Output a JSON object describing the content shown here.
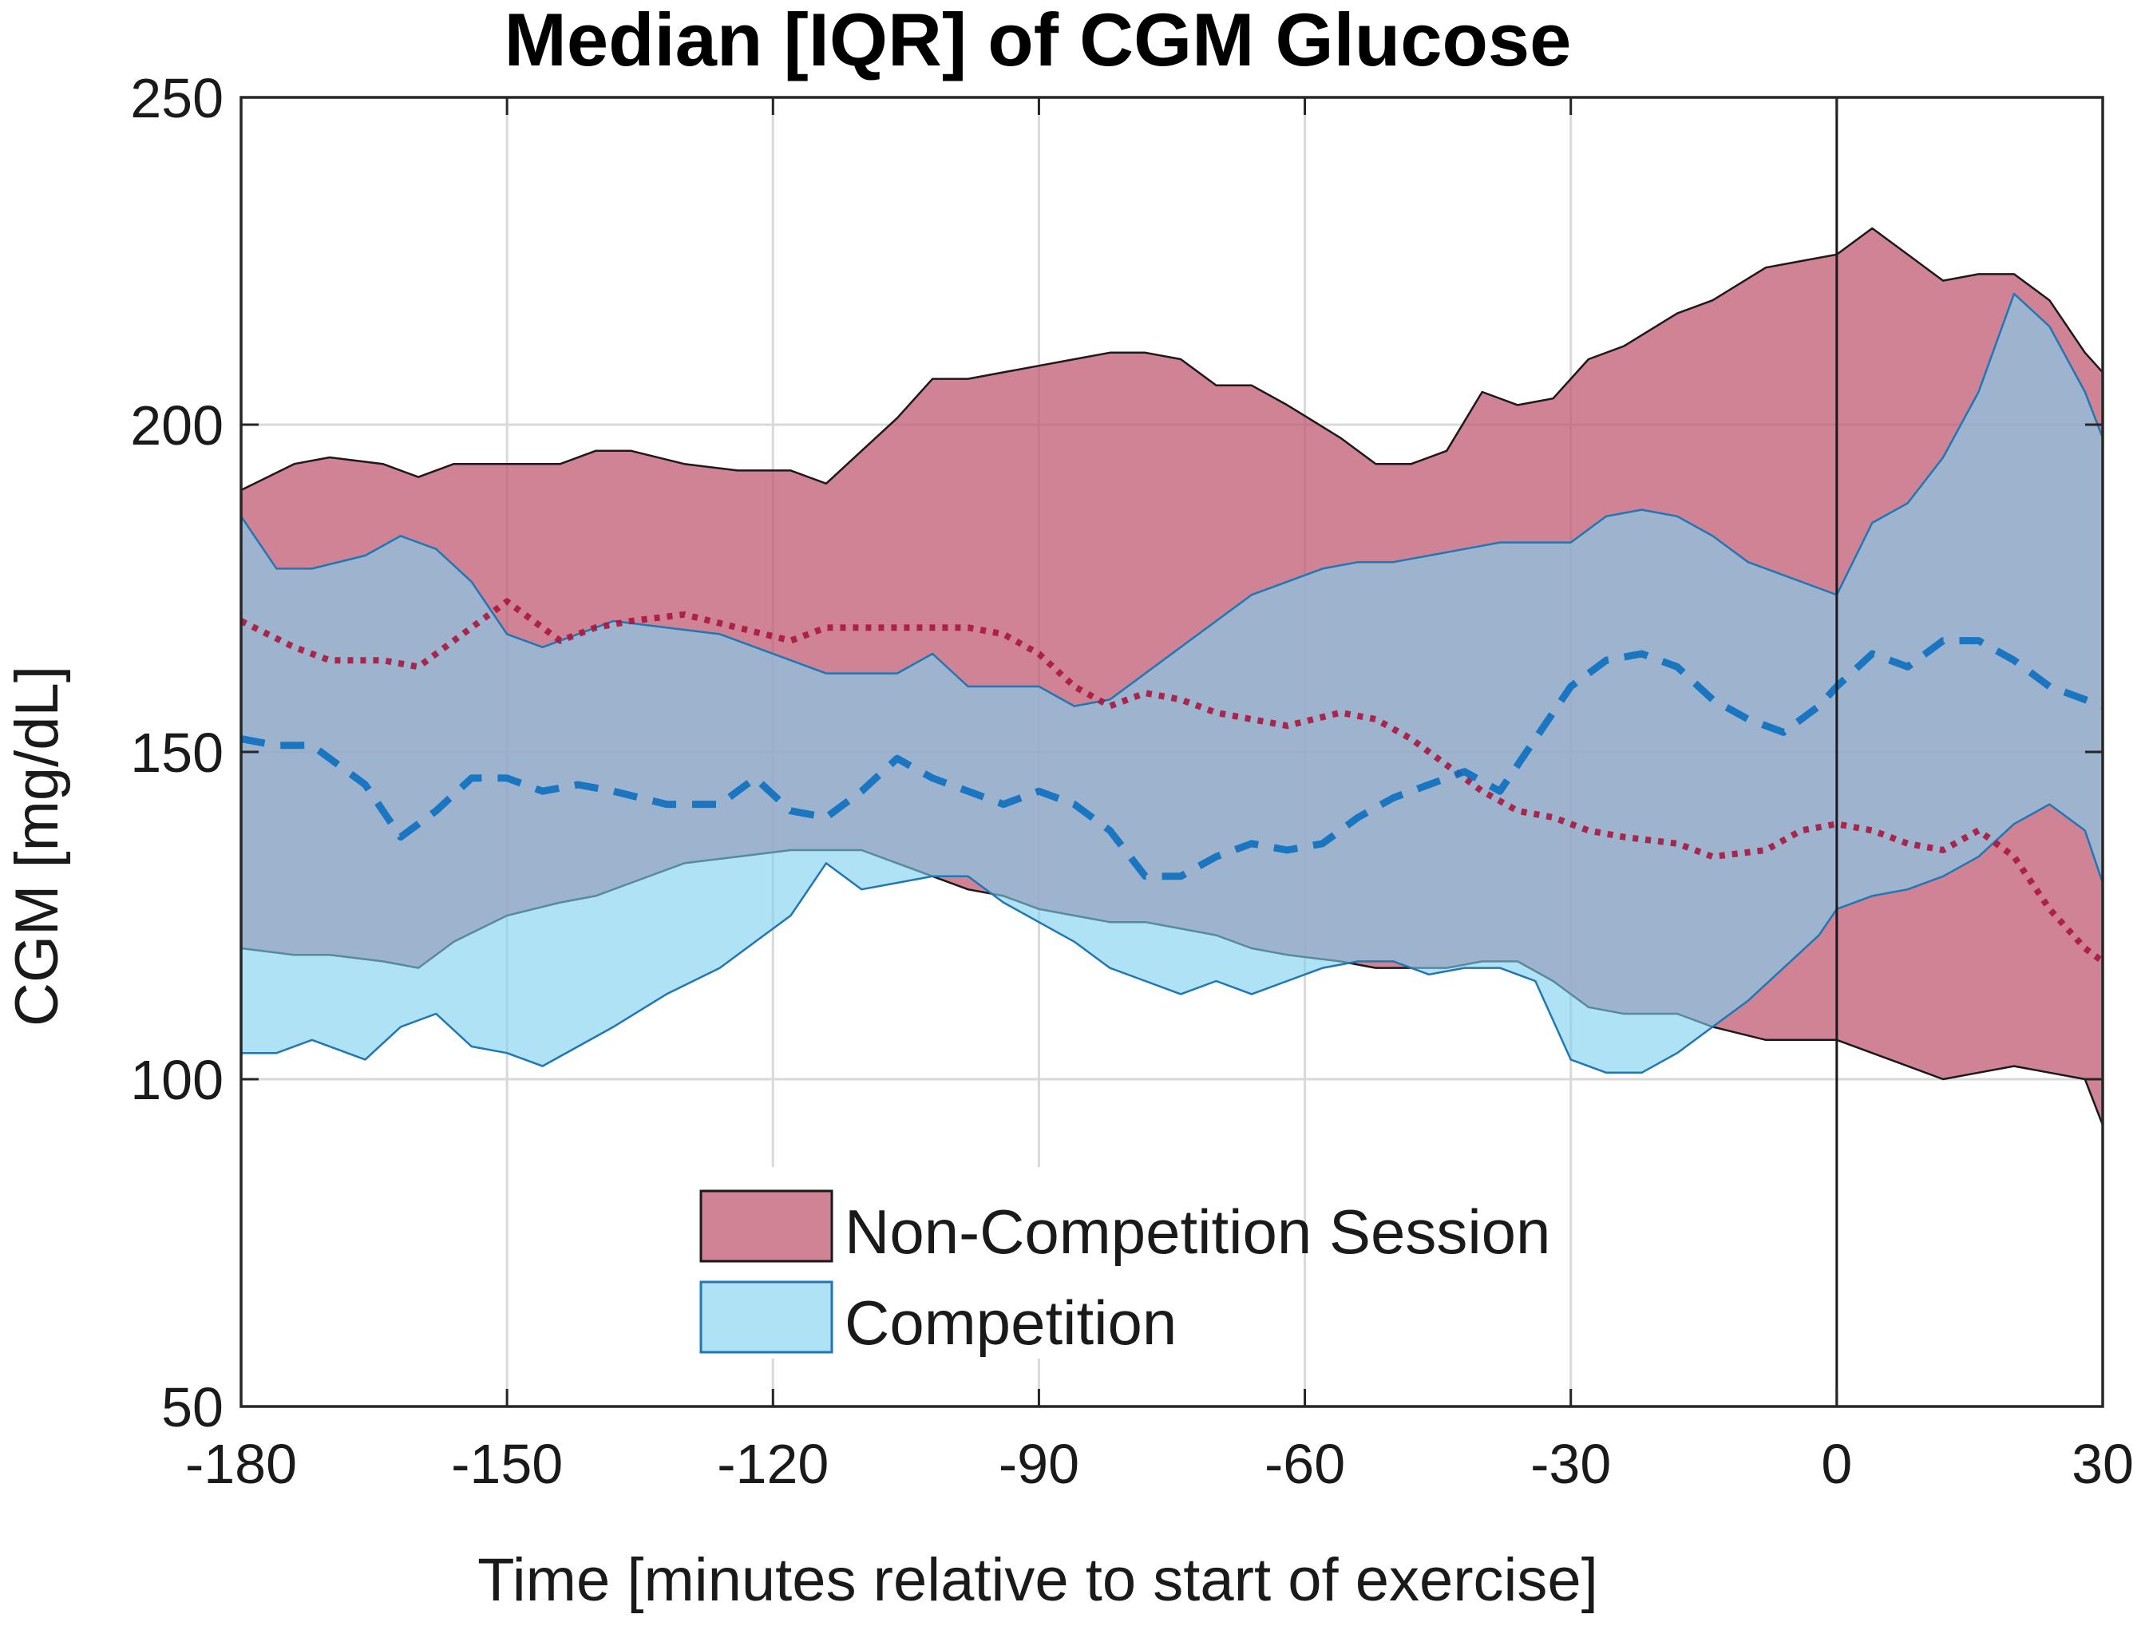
{
  "chart_data": {
    "type": "area",
    "title": "Median [IQR] of CGM Glucose",
    "xlabel": "Time [minutes relative to start of exercise]",
    "ylabel": "CGM [mg/dL]",
    "xlim": [
      -180,
      30
    ],
    "ylim": [
      50,
      250
    ],
    "xticks": [
      -180,
      -150,
      -120,
      -90,
      -60,
      -30,
      0,
      30
    ],
    "yticks": [
      50,
      100,
      150,
      200,
      250
    ],
    "grid": true,
    "vline_x": 0,
    "legend": {
      "position": "bottom-center",
      "entries": [
        "Non-Competition Session",
        "Competition"
      ]
    },
    "colors": {
      "non_competition_fill": "#c05a72",
      "non_competition_edge": "#1a1a1a",
      "non_competition_median": "#a8163e",
      "competition_fill": "#7fd0f0",
      "competition_edge": "#1f77b4",
      "competition_median": "#0b6fc0"
    },
    "series": [
      {
        "name": "Non-Competition Session",
        "x": [
          -180,
          -174,
          -170,
          -164,
          -160,
          -156,
          -150,
          -144,
          -140,
          -136,
          -130,
          -124,
          -118,
          -114,
          -110,
          -106,
          -102,
          -98,
          -94,
          -90,
          -86,
          -82,
          -78,
          -74,
          -70,
          -66,
          -62,
          -56,
          -52,
          -48,
          -44,
          -40,
          -36,
          -32,
          -28,
          -24,
          -18,
          -14,
          -8,
          -4,
          0,
          4,
          8,
          12,
          16,
          20,
          24,
          28,
          30
        ],
        "upper": [
          190,
          194,
          195,
          194,
          192,
          194,
          194,
          194,
          196,
          196,
          194,
          193,
          193,
          191,
          196,
          201,
          207,
          207,
          208,
          209,
          210,
          211,
          211,
          210,
          206,
          206,
          203,
          198,
          194,
          194,
          196,
          205,
          203,
          204,
          210,
          212,
          217,
          219,
          224,
          225,
          226,
          230,
          226,
          222,
          223,
          223,
          219,
          211,
          208
        ],
        "median": [
          170,
          166,
          164,
          164,
          163,
          167,
          173,
          167,
          169,
          170,
          171,
          169,
          167,
          169,
          169,
          169,
          169,
          169,
          168,
          165,
          160,
          157,
          159,
          158,
          156,
          155,
          154,
          156,
          155,
          152,
          148,
          144,
          141,
          140,
          138,
          137,
          136,
          134,
          135,
          138,
          139,
          138,
          136,
          135,
          138,
          134,
          126,
          120,
          118
        ],
        "lower": [
          120,
          119,
          119,
          118,
          117,
          121,
          125,
          127,
          128,
          130,
          133,
          134,
          135,
          135,
          135,
          133,
          131,
          129,
          128,
          126,
          125,
          124,
          124,
          123,
          122,
          120,
          119,
          118,
          117,
          117,
          117,
          118,
          118,
          115,
          111,
          110,
          110,
          108,
          106,
          106,
          106,
          104,
          102,
          100,
          101,
          102,
          101,
          100,
          93
        ]
      },
      {
        "name": "Competition",
        "x": [
          -180,
          -176,
          -172,
          -166,
          -162,
          -158,
          -154,
          -150,
          -146,
          -142,
          -138,
          -132,
          -126,
          -122,
          -118,
          -114,
          -110,
          -106,
          -102,
          -98,
          -94,
          -90,
          -86,
          -82,
          -78,
          -74,
          -70,
          -66,
          -62,
          -58,
          -54,
          -50,
          -46,
          -42,
          -38,
          -34,
          -30,
          -26,
          -22,
          -18,
          -14,
          -10,
          -6,
          -2,
          0,
          4,
          8,
          12,
          16,
          20,
          24,
          28,
          30
        ],
        "upper": [
          186,
          178,
          178,
          180,
          183,
          181,
          176,
          168,
          166,
          168,
          170,
          169,
          168,
          166,
          164,
          162,
          162,
          162,
          165,
          160,
          160,
          160,
          157,
          158,
          162,
          166,
          170,
          174,
          176,
          178,
          179,
          179,
          180,
          181,
          182,
          182,
          182,
          186,
          187,
          186,
          183,
          179,
          177,
          175,
          174,
          185,
          188,
          195,
          205,
          220,
          215,
          205,
          198
        ],
        "median": [
          152,
          151,
          151,
          145,
          137,
          141,
          146,
          146,
          144,
          145,
          144,
          142,
          142,
          146,
          141,
          140,
          144,
          149,
          146,
          144,
          142,
          144,
          142,
          138,
          131,
          131,
          134,
          136,
          135,
          136,
          140,
          143,
          145,
          147,
          144,
          152,
          160,
          164,
          165,
          163,
          158,
          155,
          153,
          157,
          160,
          165,
          163,
          167,
          167,
          164,
          160,
          158,
          157
        ],
        "lower": [
          104,
          104,
          106,
          103,
          108,
          110,
          105,
          104,
          102,
          105,
          108,
          113,
          117,
          121,
          125,
          133,
          129,
          130,
          131,
          131,
          127,
          124,
          121,
          117,
          115,
          113,
          115,
          113,
          115,
          117,
          118,
          118,
          116,
          117,
          117,
          115,
          103,
          101,
          101,
          104,
          108,
          112,
          117,
          122,
          126,
          128,
          129,
          131,
          134,
          139,
          142,
          138,
          130
        ]
      }
    ]
  }
}
